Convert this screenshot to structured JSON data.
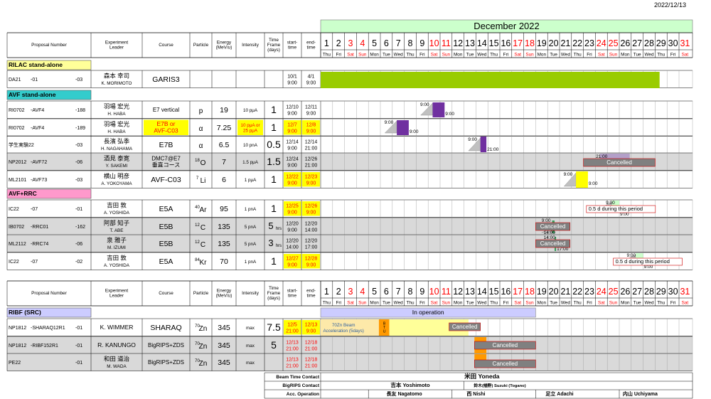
{
  "date": "2022/12/13",
  "header": {
    "month": "December 2022",
    "columns": [
      "Proposal Number",
      "Experiment Leader",
      "Course",
      "Particle",
      "Energy (MeV/u)",
      "Intensity",
      "Time Frame (days)",
      "start-time",
      "end-time"
    ],
    "days": [
      "1",
      "2",
      "3",
      "4",
      "5",
      "6",
      "7",
      "8",
      "9",
      "10",
      "11",
      "12",
      "13",
      "14",
      "15",
      "16",
      "17",
      "18",
      "19",
      "20",
      "21",
      "22",
      "23",
      "24",
      "25",
      "26",
      "27",
      "28",
      "29",
      "30",
      "31"
    ],
    "weekdays": [
      "Thu",
      "Fri",
      "Sat",
      "Sun",
      "Mon",
      "Tue",
      "Wed",
      "Thu",
      "Fri",
      "Sat",
      "Sun",
      "Mon",
      "Tue",
      "Wed",
      "Thu",
      "Fri",
      "Sat",
      "Sun",
      "Mon",
      "Tue",
      "Wed",
      "Thu",
      "Fri",
      "Sat",
      "Sun",
      "Mon",
      "Tue",
      "Wed",
      "Thu",
      "Fri",
      "Sat"
    ],
    "red_days": [
      "3",
      "4",
      "10",
      "11",
      "17",
      "18",
      "24",
      "25",
      "31"
    ]
  },
  "colors": {
    "green": "#99cc00",
    "purple": "#7030a0",
    "yellow": "#ffff00",
    "light_green": "#ccffcc",
    "cyan": "#33cccc",
    "pink": "#ff99cc",
    "lavender": "#ccccff",
    "grey_row": "#d9d9d9",
    "gantt_grey": "#808080",
    "orange": "#ff9900",
    "red_text": "#ff0000"
  },
  "sections": [
    {
      "title": "RILAC stand-alone",
      "color": "#ffff99",
      "rows": [
        {
          "p1": "DA21",
          "p2": "-01",
          "p3": "-03",
          "leader_jp": "森本 幸司",
          "leader_en": "K. MORIMOTO",
          "course": "GARIS3",
          "particle": "",
          "iso": "",
          "energy": "",
          "intensity": "",
          "time": "",
          "start": "10/1\n9:00",
          "end": "4/1\n9:00",
          "grey": false,
          "hl": false
        }
      ]
    },
    {
      "title": "AVF stand-alone",
      "color": "#33cccc",
      "rows": [
        {
          "p1": "RI0702",
          "p2": "-AVF4",
          "p3": "-188",
          "leader_jp": "羽場 宏光",
          "leader_en": "H. HABA",
          "course": "E7 vertical",
          "particle": "p",
          "iso": "",
          "energy": "19",
          "intensity": "10 pμA",
          "time": "1",
          "start": "12/10\n9:00",
          "end": "12/11\n9:00",
          "grey": false,
          "hl": false
        },
        {
          "p1": "RI0702",
          "p2": "-AVF4",
          "p3": "-189",
          "leader_jp": "羽場 宏光",
          "leader_en": "H. HABA",
          "course": "E7B or\nAVF-C03",
          "particle": "α",
          "iso": "",
          "energy": "7.25",
          "intensity": "10 pμA or\n25 pμA",
          "time": "1",
          "start": "12/7\n9:00",
          "end": "12/8\n9:00",
          "grey": false,
          "hl": true
        },
        {
          "p1": "学生実験22",
          "p2": "",
          "p3": "-03",
          "leader_jp": "長濱 弘季",
          "leader_en": "H. NAGAHAMA",
          "course": "E7B",
          "particle": "α",
          "iso": "",
          "energy": "6.5",
          "intensity": "10 pnA",
          "time": "0.5",
          "start": "12/14\n9:00",
          "end": "12/14\n21:00",
          "grey": false,
          "hl": false
        },
        {
          "p1": "NP2012",
          "p2": "-AVF72",
          "p3": "-06",
          "leader_jp": "酒見 泰寛",
          "leader_en": "Y. SAKEMI",
          "course": "DMC7@E7\n垂直コース",
          "particle": "O",
          "iso": "18",
          "energy": "7",
          "intensity": "1.5 pμA",
          "time": "1.5",
          "start": "12/24\n9:00",
          "end": "12/26\n21:00",
          "grey": true,
          "hl": false
        },
        {
          "p1": "ML2101",
          "p2": "-AVF73",
          "p3": "-03",
          "leader_jp": "横山 明彦",
          "leader_en": "A. YOKOYAMA",
          "course": "AVF-C03",
          "particle": "Li",
          "iso": "7",
          "energy": "6",
          "intensity": "1 pμA",
          "time": "1",
          "start": "12/22\n9:00",
          "end": "12/23\n9:00",
          "grey": false,
          "hl": true
        }
      ]
    },
    {
      "title": "AVF+RRC",
      "color": "#ff99cc",
      "rows": [
        {
          "p1": "IC22",
          "p2": "-07",
          "p3": "-01",
          "leader_jp": "吉田 敦",
          "leader_en": "A. YOSHIDA",
          "course": "E5A",
          "particle": "Ar",
          "iso": "40",
          "energy": "95",
          "intensity": "1 pnA",
          "time": "1",
          "start": "12/25\n9:00",
          "end": "12/26\n9:00",
          "grey": false,
          "hl": true
        },
        {
          "p1": "IB0702",
          "p2": "-RRC01",
          "p3": "-162",
          "leader_jp": "阿部 知子",
          "leader_en": "T. ABE",
          "course": "E5B",
          "particle": "C",
          "iso": "12",
          "energy": "135",
          "intensity": "5 pnA",
          "time": "5hrs",
          "start": "12/20\n9:00",
          "end": "12/20\n14:00",
          "grey": true,
          "hl": false
        },
        {
          "p1": "ML2112",
          "p2": "-RRC74",
          "p3": "-06",
          "leader_jp": "泉 雅子",
          "leader_en": "M. IZUMI",
          "course": "E5B",
          "particle": "C",
          "iso": "12",
          "energy": "135",
          "intensity": "5 pnA",
          "time": "3hrs",
          "start": "12/20\n14:00",
          "end": "12/20\n17:00",
          "grey": true,
          "hl": false
        },
        {
          "p1": "IC22",
          "p2": "-07",
          "p3": "-02",
          "leader_jp": "吉田 敦",
          "leader_en": "A. YOSHIDA",
          "course": "E5A",
          "particle": "Kr",
          "iso": "84",
          "energy": "70",
          "intensity": "1 pnA",
          "time": "1",
          "start": "12/27\n9:00",
          "end": "12/28\n9:00",
          "grey": false,
          "hl": true
        }
      ]
    },
    {
      "title": "RIBF (SRC)",
      "color": "#ccccff",
      "rows": [
        {
          "p1": "NP1812",
          "p2": "-SHARAQ12R1",
          "p3": "-01",
          "leader_jp": "",
          "leader_en": "K. WIMMER",
          "course": "SHARAQ",
          "particle": "Zn",
          "iso": "70",
          "energy": "345",
          "intensity": "max",
          "time": "7.5",
          "start": "12/5\n21:00",
          "end": "12/13\n9:00",
          "grey": false,
          "hl": true
        },
        {
          "p1": "NP1812",
          "p2": "-RIBF152R1",
          "p3": "-01",
          "leader_jp": "",
          "leader_en": "R. KANUNGO",
          "course": "BigRIPS+ZDS",
          "particle": "Zn",
          "iso": "70",
          "energy": "345",
          "intensity": "max",
          "time": "5",
          "start": "12/13\n21:00",
          "end": "12/18\n21:00",
          "grey": true,
          "hl": false,
          "red_se": true
        },
        {
          "p1": "PE22",
          "p2": "",
          "p3": "-01",
          "leader_jp": "和田 道治",
          "leader_en": "M. WADA",
          "course": "BigRIPS+ZDS",
          "particle": "Zn",
          "iso": "70",
          "energy": "345",
          "intensity": "max",
          "time": "",
          "start": "12/13\n21:00",
          "end": "12/18\n21:00",
          "grey": true,
          "hl": false,
          "red_se": true
        }
      ]
    }
  ],
  "gantt_labels": {
    "t900": "9:00",
    "t2100": "21:00",
    "t1400": "14:00",
    "t1700": "17:00",
    "cancelled": "Cancelled",
    "half_day": "0.5 d during this period",
    "in_operation": "In operation",
    "zn_beam": "70Zn Beam\nAcceleration (5days)",
    "btu": "B\nT\nU"
  },
  "footer": {
    "beam_contact_label": "Beam Time Contact",
    "bigrips_contact_label": "BigRIPS Contact",
    "acc_operation_label": "Acc. Operation",
    "beam_contact": "米田 Yoneda",
    "bigrips_contact_1": "吉本 Yoshimoto",
    "bigrips_contact_2": "鈴木(楢野) Suzuki (Togano)",
    "acc_1": "長友 Nagatomo",
    "acc_2": "西 Nishi",
    "acc_3": "足立 Adachi",
    "acc_4": "内山 Uchiyama"
  }
}
